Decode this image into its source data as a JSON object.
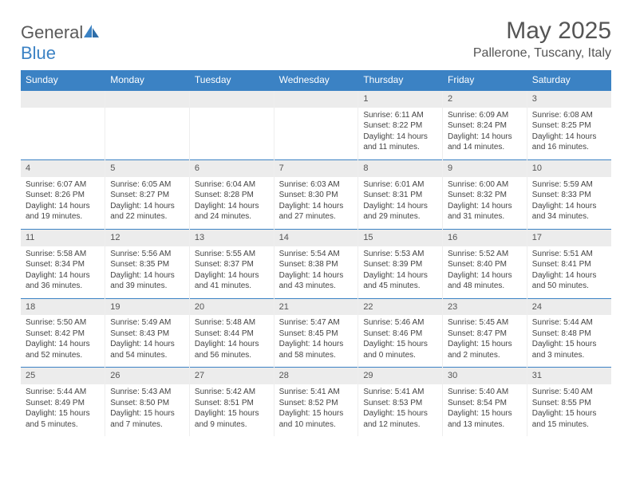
{
  "brand": {
    "part1": "General",
    "part2": "Blue"
  },
  "title": "May 2025",
  "location": "Pallerone, Tuscany, Italy",
  "header_bg": "#3b82c4",
  "daynum_bg": "#ececec",
  "days": [
    "Sunday",
    "Monday",
    "Tuesday",
    "Wednesday",
    "Thursday",
    "Friday",
    "Saturday"
  ],
  "weeks": [
    [
      null,
      null,
      null,
      null,
      {
        "n": "1",
        "sr": "6:11 AM",
        "ss": "8:22 PM",
        "dl": "14 hours and 11 minutes."
      },
      {
        "n": "2",
        "sr": "6:09 AM",
        "ss": "8:24 PM",
        "dl": "14 hours and 14 minutes."
      },
      {
        "n": "3",
        "sr": "6:08 AM",
        "ss": "8:25 PM",
        "dl": "14 hours and 16 minutes."
      }
    ],
    [
      {
        "n": "4",
        "sr": "6:07 AM",
        "ss": "8:26 PM",
        "dl": "14 hours and 19 minutes."
      },
      {
        "n": "5",
        "sr": "6:05 AM",
        "ss": "8:27 PM",
        "dl": "14 hours and 22 minutes."
      },
      {
        "n": "6",
        "sr": "6:04 AM",
        "ss": "8:28 PM",
        "dl": "14 hours and 24 minutes."
      },
      {
        "n": "7",
        "sr": "6:03 AM",
        "ss": "8:30 PM",
        "dl": "14 hours and 27 minutes."
      },
      {
        "n": "8",
        "sr": "6:01 AM",
        "ss": "8:31 PM",
        "dl": "14 hours and 29 minutes."
      },
      {
        "n": "9",
        "sr": "6:00 AM",
        "ss": "8:32 PM",
        "dl": "14 hours and 31 minutes."
      },
      {
        "n": "10",
        "sr": "5:59 AM",
        "ss": "8:33 PM",
        "dl": "14 hours and 34 minutes."
      }
    ],
    [
      {
        "n": "11",
        "sr": "5:58 AM",
        "ss": "8:34 PM",
        "dl": "14 hours and 36 minutes."
      },
      {
        "n": "12",
        "sr": "5:56 AM",
        "ss": "8:35 PM",
        "dl": "14 hours and 39 minutes."
      },
      {
        "n": "13",
        "sr": "5:55 AM",
        "ss": "8:37 PM",
        "dl": "14 hours and 41 minutes."
      },
      {
        "n": "14",
        "sr": "5:54 AM",
        "ss": "8:38 PM",
        "dl": "14 hours and 43 minutes."
      },
      {
        "n": "15",
        "sr": "5:53 AM",
        "ss": "8:39 PM",
        "dl": "14 hours and 45 minutes."
      },
      {
        "n": "16",
        "sr": "5:52 AM",
        "ss": "8:40 PM",
        "dl": "14 hours and 48 minutes."
      },
      {
        "n": "17",
        "sr": "5:51 AM",
        "ss": "8:41 PM",
        "dl": "14 hours and 50 minutes."
      }
    ],
    [
      {
        "n": "18",
        "sr": "5:50 AM",
        "ss": "8:42 PM",
        "dl": "14 hours and 52 minutes."
      },
      {
        "n": "19",
        "sr": "5:49 AM",
        "ss": "8:43 PM",
        "dl": "14 hours and 54 minutes."
      },
      {
        "n": "20",
        "sr": "5:48 AM",
        "ss": "8:44 PM",
        "dl": "14 hours and 56 minutes."
      },
      {
        "n": "21",
        "sr": "5:47 AM",
        "ss": "8:45 PM",
        "dl": "14 hours and 58 minutes."
      },
      {
        "n": "22",
        "sr": "5:46 AM",
        "ss": "8:46 PM",
        "dl": "15 hours and 0 minutes."
      },
      {
        "n": "23",
        "sr": "5:45 AM",
        "ss": "8:47 PM",
        "dl": "15 hours and 2 minutes."
      },
      {
        "n": "24",
        "sr": "5:44 AM",
        "ss": "8:48 PM",
        "dl": "15 hours and 3 minutes."
      }
    ],
    [
      {
        "n": "25",
        "sr": "5:44 AM",
        "ss": "8:49 PM",
        "dl": "15 hours and 5 minutes."
      },
      {
        "n": "26",
        "sr": "5:43 AM",
        "ss": "8:50 PM",
        "dl": "15 hours and 7 minutes."
      },
      {
        "n": "27",
        "sr": "5:42 AM",
        "ss": "8:51 PM",
        "dl": "15 hours and 9 minutes."
      },
      {
        "n": "28",
        "sr": "5:41 AM",
        "ss": "8:52 PM",
        "dl": "15 hours and 10 minutes."
      },
      {
        "n": "29",
        "sr": "5:41 AM",
        "ss": "8:53 PM",
        "dl": "15 hours and 12 minutes."
      },
      {
        "n": "30",
        "sr": "5:40 AM",
        "ss": "8:54 PM",
        "dl": "15 hours and 13 minutes."
      },
      {
        "n": "31",
        "sr": "5:40 AM",
        "ss": "8:55 PM",
        "dl": "15 hours and 15 minutes."
      }
    ]
  ],
  "labels": {
    "sunrise": "Sunrise: ",
    "sunset": "Sunset: ",
    "daylight": "Daylight: "
  }
}
